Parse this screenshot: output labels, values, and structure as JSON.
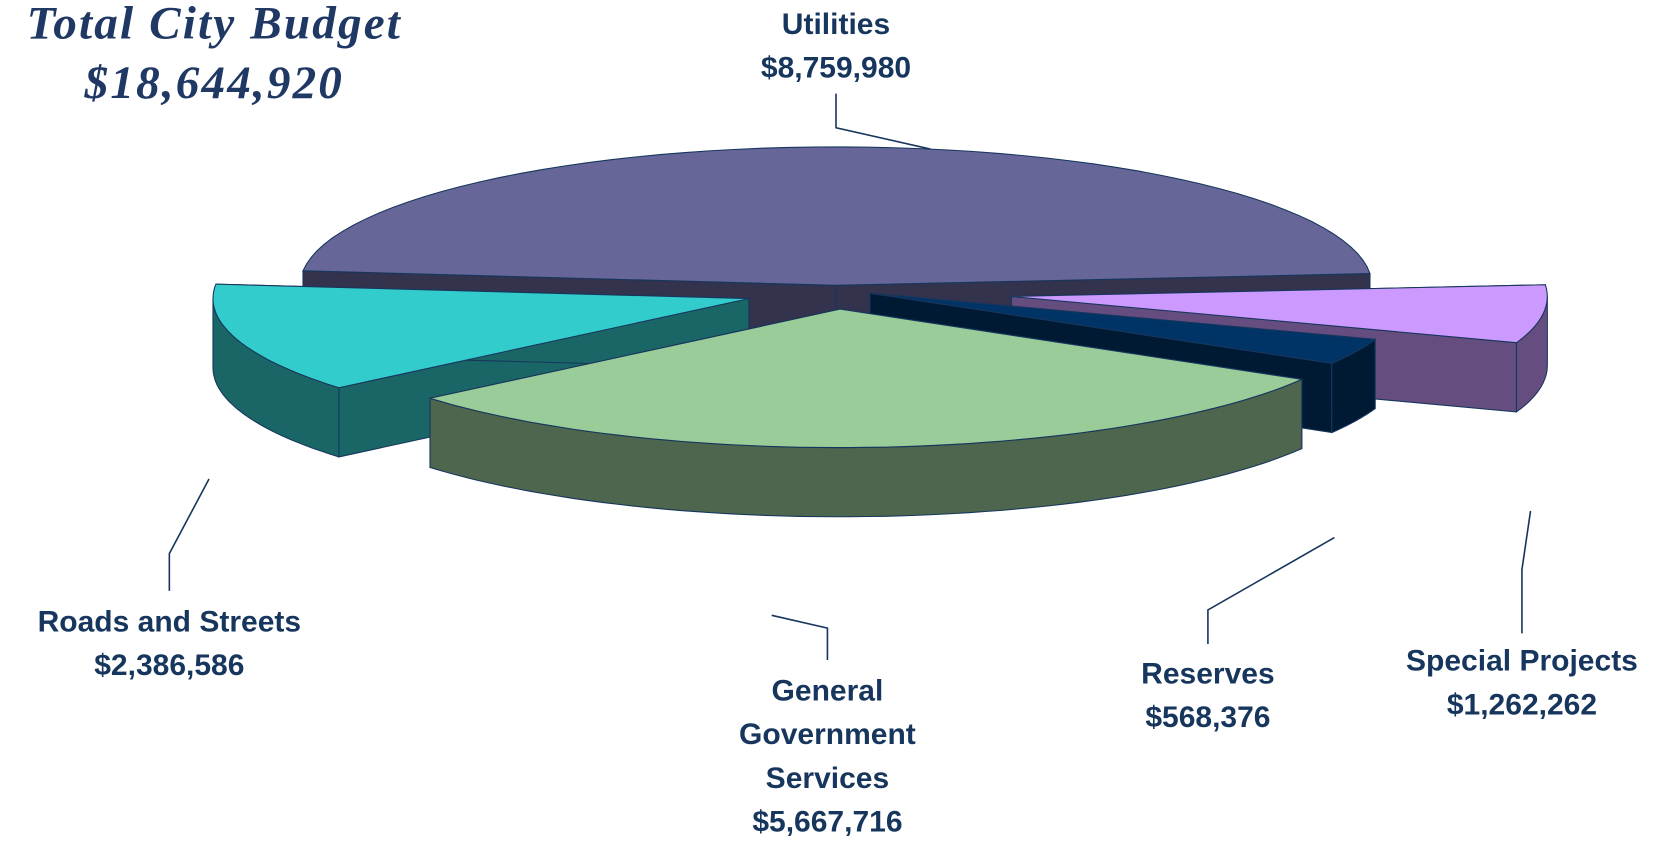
{
  "chart_data": {
    "type": "pie3d",
    "title": "Total City Budget",
    "subtitle": "$18,644,920",
    "categories": [
      "Utilities",
      "Special Projects",
      "Reserves",
      "General Government Services",
      "Roads and Streets"
    ],
    "values": [
      8759980,
      1262262,
      568376,
      5667716,
      2386586
    ],
    "value_labels": [
      "$8,759,980",
      "$1,262,262",
      "$568,376",
      "$5,667,716",
      "$2,386,586"
    ],
    "colors": [
      "#666699",
      "#cc99ff",
      "#003366",
      "#99cc99",
      "#33cccc"
    ]
  }
}
